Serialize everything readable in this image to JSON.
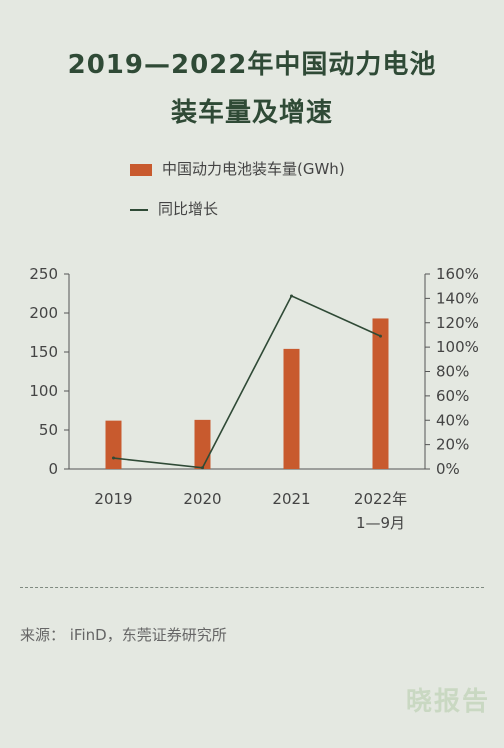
{
  "title_line1": "2019—2022年中国动力电池",
  "title_line2": "装车量及增速",
  "source": "来源： iFinD，东莞证券研究所",
  "watermark": "晓报告",
  "colors": {
    "bar": "#c85a2e",
    "line": "#2f4a36",
    "axis": "#555555"
  },
  "chart_data": {
    "type": "bar",
    "categories": [
      "2019",
      "2020",
      "2021",
      "2022年\n1—9月"
    ],
    "series": [
      {
        "name": "中国动力电池装车量(GWh)",
        "type": "bar",
        "axis": "left",
        "values": [
          62,
          63,
          154,
          193
        ]
      },
      {
        "name": "同比增长",
        "type": "line",
        "axis": "right",
        "values": [
          9,
          1,
          142,
          109
        ]
      }
    ],
    "y_left": {
      "ylim": [
        0,
        250
      ],
      "ticks": [
        "0",
        "50",
        "100",
        "150",
        "200",
        "250"
      ]
    },
    "y_right": {
      "ylim": [
        0,
        160
      ],
      "ticks": [
        "0%",
        "20%",
        "40%",
        "60%",
        "80%",
        "100%",
        "120%",
        "140%",
        "160%"
      ]
    },
    "legend_placement": "top-left",
    "grid": false
  }
}
